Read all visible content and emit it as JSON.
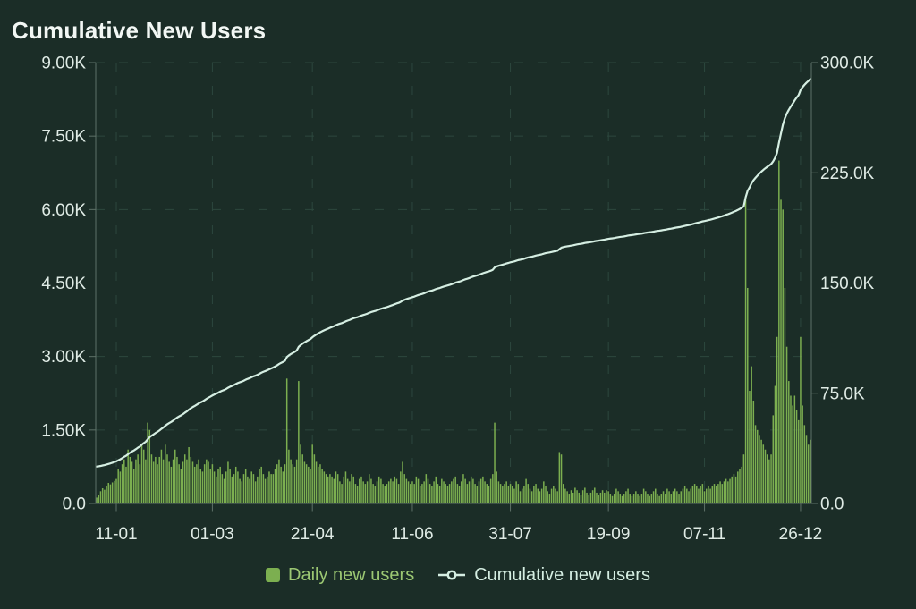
{
  "title": "Cumulative New Users",
  "colors": {
    "background": "#1B2D27",
    "bar": "#7CAF50",
    "line": "#D5EEE2",
    "grid": "#2C473E",
    "axis": "#5E7168",
    "tick_text": "#DFEBE5",
    "title_text": "#F2F7F4",
    "legend_daily_text": "#9CC873",
    "legend_cumulative_text": "#D5EEE2"
  },
  "legend": {
    "position": "bottom",
    "daily": {
      "label": "Daily new users"
    },
    "cumulative": {
      "label": "Cumulative new users"
    }
  },
  "chart_data": {
    "type": "combo-bar-line",
    "title": "Cumulative New Users",
    "grid": "dashed",
    "legend_position": "bottom",
    "x_unit": "day",
    "date_format": "DD-MM",
    "x_ticks": [
      {
        "label": "11-01",
        "day": 10
      },
      {
        "label": "01-03",
        "day": 59
      },
      {
        "label": "21-04",
        "day": 110
      },
      {
        "label": "11-06",
        "day": 161
      },
      {
        "label": "31-07",
        "day": 211
      },
      {
        "label": "19-09",
        "day": 261
      },
      {
        "label": "07-11",
        "day": 310
      },
      {
        "label": "26-12",
        "day": 359
      }
    ],
    "left_axis": {
      "min": 0,
      "max": 9000,
      "ticks": [
        {
          "label": "9.00K",
          "value": 9000
        },
        {
          "label": "7.50K",
          "value": 7500
        },
        {
          "label": "6.00K",
          "value": 6000
        },
        {
          "label": "4.50K",
          "value": 4500
        },
        {
          "label": "3.00K",
          "value": 3000
        },
        {
          "label": "1.50K",
          "value": 1500
        },
        {
          "label": "0.0",
          "value": 0
        }
      ]
    },
    "right_axis": {
      "min": 0,
      "max": 300000,
      "ticks": [
        {
          "label": "300.0K",
          "value": 300000
        },
        {
          "label": "225.0K",
          "value": 225000
        },
        {
          "label": "150.0K",
          "value": 150000
        },
        {
          "label": "75.0K",
          "value": 75000
        },
        {
          "label": "0.0",
          "value": 0
        }
      ]
    },
    "series": [
      {
        "name": "Daily new users",
        "type": "bar",
        "axis": "left",
        "values": [
          120,
          180,
          250,
          310,
          280,
          350,
          420,
          390,
          430,
          460,
          500,
          700,
          650,
          800,
          900,
          750,
          1100,
          950,
          850,
          700,
          900,
          1000,
          800,
          1200,
          1100,
          900,
          1650,
          1500,
          1000,
          850,
          950,
          800,
          950,
          1100,
          900,
          1200,
          1000,
          850,
          750,
          900,
          1100,
          950,
          800,
          700,
          850,
          1000,
          900,
          1150,
          950,
          850,
          750,
          800,
          900,
          700,
          650,
          800,
          900,
          850,
          700,
          800,
          650,
          550,
          700,
          750,
          600,
          500,
          650,
          850,
          700,
          550,
          600,
          750,
          650,
          500,
          450,
          600,
          700,
          550,
          500,
          650,
          600,
          450,
          550,
          700,
          750,
          600,
          500,
          550,
          650,
          600,
          600,
          700,
          800,
          900,
          750,
          650,
          800,
          2550,
          1100,
          900,
          800,
          750,
          900,
          2500,
          1200,
          1000,
          850,
          800,
          750,
          700,
          1200,
          1000,
          850,
          750,
          800,
          700,
          650,
          600,
          550,
          600,
          550,
          500,
          650,
          600,
          450,
          400,
          550,
          650,
          500,
          450,
          600,
          550,
          400,
          350,
          500,
          550,
          450,
          400,
          450,
          600,
          500,
          400,
          350,
          450,
          550,
          500,
          400,
          350,
          400,
          450,
          500,
          450,
          550,
          500,
          400,
          650,
          850,
          600,
          500,
          450,
          400,
          450,
          400,
          550,
          500,
          350,
          400,
          450,
          600,
          500,
          400,
          350,
          450,
          550,
          400,
          350,
          500,
          450,
          400,
          350,
          400,
          450,
          500,
          550,
          400,
          350,
          450,
          600,
          500,
          400,
          450,
          550,
          500,
          400,
          350,
          450,
          500,
          550,
          450,
          400,
          350,
          500,
          600,
          1650,
          650,
          450,
          400,
          350,
          400,
          450,
          350,
          400,
          350,
          300,
          450,
          400,
          250,
          300,
          350,
          500,
          400,
          300,
          250,
          350,
          400,
          300,
          250,
          300,
          450,
          350,
          250,
          200,
          300,
          350,
          300,
          250,
          1050,
          1000,
          400,
          300,
          250,
          200,
          270,
          220,
          320,
          270,
          220,
          170,
          270,
          320,
          220,
          170,
          220,
          270,
          320,
          220,
          170,
          220,
          270,
          220,
          270,
          250,
          200,
          150,
          200,
          300,
          250,
          200,
          150,
          200,
          250,
          300,
          200,
          150,
          200,
          250,
          200,
          150,
          200,
          300,
          250,
          200,
          150,
          200,
          250,
          300,
          200,
          150,
          200,
          250,
          200,
          300,
          250,
          200,
          250,
          300,
          250,
          200,
          250,
          300,
          350,
          300,
          250,
          300,
          350,
          400,
          350,
          300,
          350,
          400,
          250,
          300,
          350,
          300,
          350,
          400,
          350,
          400,
          450,
          400,
          450,
          500,
          450,
          500,
          550,
          600,
          550,
          650,
          700,
          750,
          1000,
          6200,
          4400,
          2300,
          2800,
          2100,
          1600,
          1500,
          1400,
          1300,
          1200,
          1100,
          1000,
          900,
          1000,
          1800,
          2400,
          3400,
          7000,
          6200,
          6000,
          4400,
          3200,
          2500,
          2200,
          2000,
          2200,
          1900,
          1700,
          3400,
          2000,
          1600,
          1400,
          1200,
          1300
        ]
      },
      {
        "name": "Cumulative new users",
        "type": "line",
        "axis": "right",
        "base_value": 25000,
        "derivation": "cumulative[i] = base_value + running sum of daily values[0..i]",
        "end_value": 288770
      }
    ]
  }
}
